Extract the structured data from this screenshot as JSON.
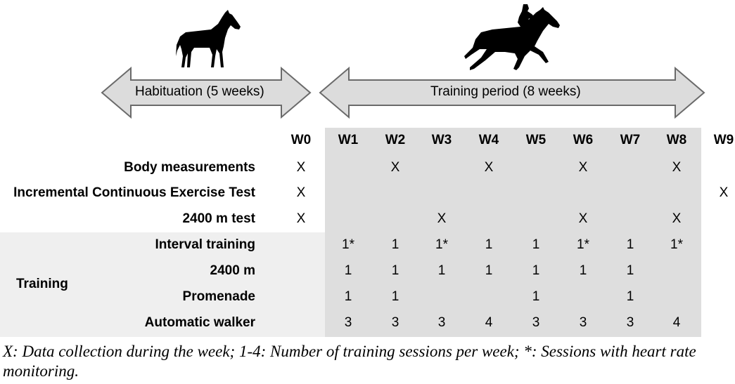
{
  "arrows": {
    "habituation": "Habituation (5 weeks)",
    "training_period": "Training period (8 weeks)"
  },
  "weeks": [
    "W0",
    "W1",
    "W2",
    "W3",
    "W4",
    "W5",
    "W6",
    "W7",
    "W8",
    "W9"
  ],
  "rows": [
    {
      "label": "Body measurements",
      "cells": [
        "X",
        "",
        "X",
        "",
        "X",
        "",
        "X",
        "",
        "X",
        ""
      ]
    },
    {
      "label": "Incremental Continuous Exercise Test",
      "cells": [
        "X",
        "",
        "",
        "",
        "",
        "",
        "",
        "",
        "",
        "X"
      ]
    },
    {
      "label": "2400 m test",
      "cells": [
        "X",
        "",
        "",
        "X",
        "",
        "",
        "X",
        "",
        "X",
        ""
      ]
    }
  ],
  "training": {
    "group_label": "Training",
    "rows": [
      {
        "label": "Interval training",
        "cells": [
          "",
          "1*",
          "1",
          "1*",
          "1",
          "1",
          "1*",
          "1",
          "1*",
          ""
        ]
      },
      {
        "label": "2400 m",
        "cells": [
          "",
          "1",
          "1",
          "1",
          "1",
          "1",
          "1",
          "1",
          "",
          ""
        ]
      },
      {
        "label": "Promenade",
        "cells": [
          "",
          "1",
          "1",
          "",
          "",
          "1",
          "",
          "1",
          "",
          ""
        ]
      },
      {
        "label": "Automatic walker",
        "cells": [
          "",
          "3",
          "3",
          "3",
          "4",
          "3",
          "3",
          "3",
          "4",
          ""
        ]
      }
    ]
  },
  "caption": "X: Data collection during the week; 1-4: Number of training sessions per week; *: Sessions with heart rate monitoring.",
  "colors": {
    "shaded_block": "#dedede",
    "training_band": "#efefef",
    "arrow_fill": "#dcdcdc",
    "arrow_stroke": "#6a6a6a"
  },
  "icons": [
    "standing-horse-icon",
    "racehorse-with-jockey-icon"
  ]
}
